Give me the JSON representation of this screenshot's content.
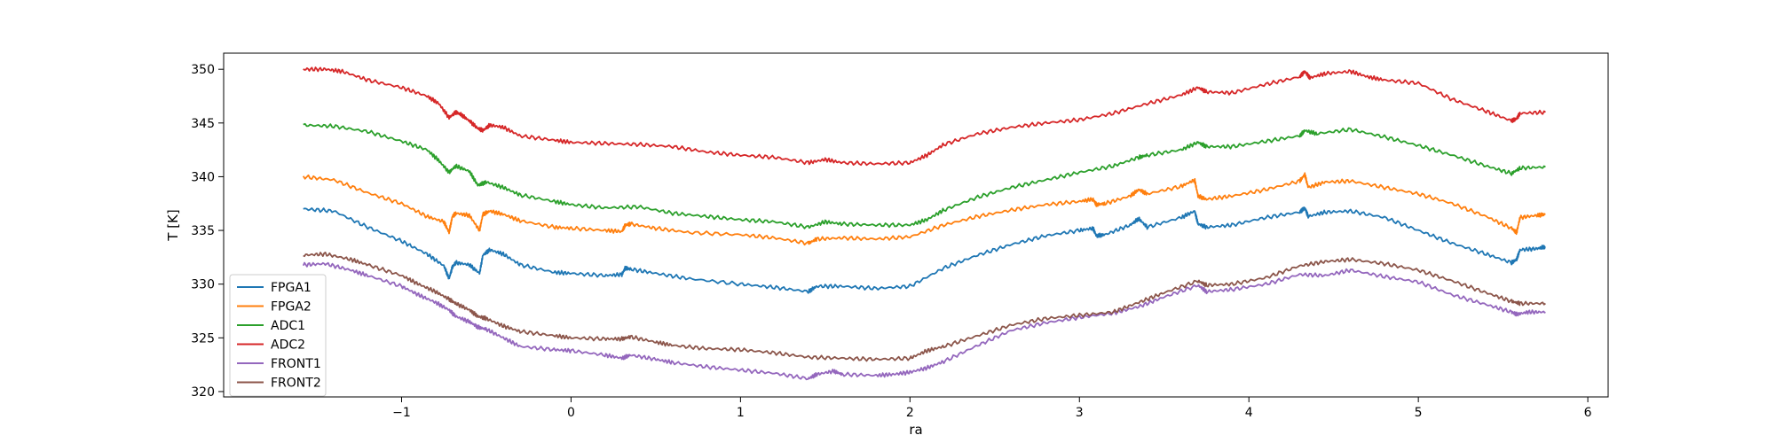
{
  "chart_data": {
    "type": "line",
    "title": "",
    "xlabel": "ra",
    "ylabel": "T [K]",
    "xlim": [
      -2.05,
      6.12
    ],
    "ylim": [
      319.5,
      351.5
    ],
    "xticks": [
      -1,
      0,
      1,
      2,
      3,
      4,
      5,
      6
    ],
    "xtick_labels": [
      "−1",
      "0",
      "1",
      "2",
      "3",
      "4",
      "5",
      "6"
    ],
    "yticks": [
      320,
      325,
      330,
      335,
      340,
      345,
      350
    ],
    "ytick_labels": [
      "320",
      "325",
      "330",
      "335",
      "340",
      "345",
      "350"
    ],
    "grid": false,
    "legend_position": "lower-left",
    "series": [
      {
        "name": "FPGA1",
        "color": "#1f77b4",
        "x": [
          -1.58,
          -1.4,
          -1.2,
          -1.0,
          -0.85,
          -0.75,
          -0.72,
          -0.7,
          -0.68,
          -0.6,
          -0.54,
          -0.52,
          -0.48,
          -0.4,
          -0.3,
          -0.1,
          0.0,
          0.2,
          0.3,
          0.32,
          0.35,
          0.5,
          0.7,
          1.0,
          1.2,
          1.4,
          1.45,
          1.6,
          1.8,
          2.0,
          2.2,
          2.4,
          2.6,
          2.8,
          3.0,
          3.08,
          3.1,
          3.15,
          3.3,
          3.35,
          3.4,
          3.6,
          3.68,
          3.7,
          3.75,
          3.9,
          4.1,
          4.3,
          4.33,
          4.35,
          4.45,
          4.6,
          4.8,
          5.0,
          5.2,
          5.4,
          5.55,
          5.58,
          5.6,
          5.7,
          5.75
        ],
        "y": [
          337.0,
          336.8,
          335.3,
          334.0,
          332.8,
          331.7,
          330.5,
          331.6,
          332.0,
          331.8,
          331.0,
          332.7,
          333.2,
          332.8,
          331.8,
          331.1,
          331.0,
          330.8,
          330.9,
          331.5,
          331.4,
          331.0,
          330.5,
          330.0,
          329.7,
          329.3,
          329.8,
          329.8,
          329.6,
          329.8,
          331.5,
          332.7,
          333.7,
          334.5,
          335.0,
          335.2,
          334.5,
          334.6,
          335.5,
          336.1,
          335.3,
          336.2,
          336.8,
          335.6,
          335.3,
          335.5,
          336.2,
          336.7,
          337.1,
          336.3,
          336.7,
          336.8,
          336.2,
          335.0,
          333.8,
          332.8,
          332.0,
          332.3,
          333.2,
          333.3,
          333.5
        ]
      },
      {
        "name": "FPGA2",
        "color": "#ff7f0e",
        "x": [
          -1.58,
          -1.4,
          -1.2,
          -1.0,
          -0.85,
          -0.75,
          -0.72,
          -0.7,
          -0.68,
          -0.6,
          -0.54,
          -0.52,
          -0.48,
          -0.4,
          -0.3,
          -0.1,
          0.0,
          0.2,
          0.3,
          0.32,
          0.35,
          0.5,
          0.7,
          1.0,
          1.2,
          1.4,
          1.45,
          1.6,
          1.8,
          2.0,
          2.2,
          2.4,
          2.6,
          2.8,
          3.0,
          3.08,
          3.1,
          3.15,
          3.3,
          3.35,
          3.4,
          3.6,
          3.68,
          3.7,
          3.75,
          3.9,
          4.1,
          4.3,
          4.33,
          4.35,
          4.45,
          4.6,
          4.8,
          5.0,
          5.2,
          5.4,
          5.55,
          5.58,
          5.6,
          5.7,
          5.75
        ],
        "y": [
          340.0,
          339.7,
          338.5,
          337.5,
          336.3,
          335.8,
          334.8,
          336.3,
          336.6,
          336.4,
          335.0,
          336.5,
          336.8,
          336.5,
          335.9,
          335.3,
          335.2,
          335.0,
          334.9,
          335.5,
          335.6,
          335.2,
          334.8,
          334.6,
          334.3,
          333.8,
          334.2,
          334.3,
          334.2,
          334.4,
          335.5,
          336.3,
          336.9,
          337.4,
          337.7,
          337.9,
          337.4,
          337.5,
          338.2,
          338.8,
          338.4,
          339.1,
          339.7,
          338.2,
          337.9,
          338.2,
          338.8,
          339.6,
          340.2,
          339.0,
          339.5,
          339.6,
          339.0,
          338.4,
          337.5,
          336.3,
          335.2,
          334.8,
          336.2,
          336.4,
          336.5
        ]
      },
      {
        "name": "ADC1",
        "color": "#2ca02c",
        "x": [
          -1.58,
          -1.4,
          -1.2,
          -1.0,
          -0.85,
          -0.78,
          -0.72,
          -0.68,
          -0.6,
          -0.55,
          -0.5,
          -0.4,
          -0.3,
          -0.1,
          0.0,
          0.2,
          0.4,
          0.6,
          0.8,
          1.0,
          1.2,
          1.4,
          1.5,
          1.6,
          1.8,
          2.0,
          2.1,
          2.2,
          2.4,
          2.6,
          2.8,
          3.0,
          3.2,
          3.35,
          3.4,
          3.6,
          3.7,
          3.75,
          3.9,
          4.1,
          4.3,
          4.33,
          4.4,
          4.6,
          4.8,
          5.0,
          5.2,
          5.4,
          5.55,
          5.6,
          5.75
        ],
        "y": [
          344.8,
          344.7,
          344.2,
          343.3,
          342.5,
          341.5,
          340.4,
          341.0,
          340.5,
          339.2,
          339.5,
          339.0,
          338.3,
          337.7,
          337.4,
          337.1,
          337.2,
          336.6,
          336.3,
          336.0,
          335.8,
          335.3,
          335.8,
          335.6,
          335.5,
          335.5,
          336.0,
          336.9,
          338.1,
          339.0,
          339.7,
          340.4,
          341.0,
          341.8,
          342.0,
          342.5,
          343.2,
          342.8,
          342.8,
          343.3,
          343.8,
          344.3,
          344.0,
          344.4,
          343.7,
          342.9,
          342.0,
          341.0,
          340.3,
          340.8,
          340.9
        ]
      },
      {
        "name": "ADC2",
        "color": "#d62728",
        "x": [
          -1.58,
          -1.45,
          -1.35,
          -1.2,
          -1.0,
          -0.85,
          -0.78,
          -0.72,
          -0.68,
          -0.65,
          -0.6,
          -0.55,
          -0.52,
          -0.48,
          -0.4,
          -0.3,
          -0.1,
          0.0,
          0.2,
          0.4,
          0.6,
          0.8,
          1.0,
          1.2,
          1.4,
          1.5,
          1.6,
          1.8,
          2.0,
          2.1,
          2.2,
          2.4,
          2.6,
          2.8,
          3.0,
          3.2,
          3.4,
          3.6,
          3.7,
          3.75,
          3.9,
          4.1,
          4.3,
          4.33,
          4.36,
          4.45,
          4.6,
          4.7,
          4.8,
          5.0,
          5.2,
          5.4,
          5.55,
          5.58,
          5.6,
          5.75
        ],
        "y": [
          350.0,
          350.0,
          349.8,
          349.0,
          348.3,
          347.5,
          346.8,
          345.5,
          346.0,
          345.8,
          345.2,
          344.5,
          344.3,
          344.8,
          344.6,
          343.8,
          343.4,
          343.2,
          343.1,
          343.0,
          342.8,
          342.3,
          342.0,
          341.8,
          341.3,
          341.6,
          341.3,
          341.2,
          341.3,
          342.0,
          343.0,
          344.0,
          344.6,
          345.0,
          345.3,
          345.9,
          346.8,
          347.6,
          348.3,
          347.9,
          347.8,
          348.6,
          349.3,
          349.8,
          349.2,
          349.6,
          349.8,
          349.3,
          349.0,
          348.7,
          347.2,
          346.1,
          345.2,
          345.4,
          345.9,
          346.0
        ]
      },
      {
        "name": "FRONT1",
        "color": "#9467bd",
        "x": [
          -1.58,
          -1.45,
          -1.3,
          -1.2,
          -1.0,
          -0.9,
          -0.8,
          -0.72,
          -0.68,
          -0.6,
          -0.55,
          -0.5,
          -0.4,
          -0.3,
          -0.1,
          0.0,
          0.2,
          0.3,
          0.35,
          0.5,
          0.6,
          0.8,
          1.0,
          1.2,
          1.4,
          1.45,
          1.55,
          1.6,
          1.8,
          1.9,
          2.0,
          2.1,
          2.2,
          2.4,
          2.6,
          2.8,
          3.0,
          3.2,
          3.35,
          3.5,
          3.7,
          3.75,
          3.9,
          4.1,
          4.3,
          4.45,
          4.6,
          4.8,
          5.0,
          5.2,
          5.4,
          5.55,
          5.58,
          5.65,
          5.75
        ],
        "y": [
          331.8,
          331.9,
          331.3,
          330.8,
          329.8,
          329.0,
          328.3,
          327.6,
          327.0,
          326.5,
          326.0,
          325.8,
          325.0,
          324.2,
          323.9,
          323.8,
          323.4,
          323.1,
          323.4,
          323.0,
          322.7,
          322.3,
          322.0,
          321.7,
          321.2,
          321.6,
          321.9,
          321.6,
          321.5,
          321.6,
          321.8,
          322.2,
          322.8,
          324.3,
          325.7,
          326.4,
          326.9,
          327.3,
          327.9,
          328.8,
          329.9,
          329.3,
          329.5,
          330.0,
          330.9,
          330.8,
          331.3,
          330.7,
          330.2,
          329.0,
          328.1,
          327.4,
          327.2,
          327.4,
          327.4
        ]
      },
      {
        "name": "FRONT2",
        "color": "#8c564b",
        "x": [
          -1.58,
          -1.45,
          -1.3,
          -1.2,
          -1.0,
          -0.9,
          -0.8,
          -0.72,
          -0.68,
          -0.6,
          -0.55,
          -0.5,
          -0.4,
          -0.3,
          -0.1,
          0.0,
          0.2,
          0.3,
          0.35,
          0.5,
          0.6,
          0.8,
          1.0,
          1.2,
          1.4,
          1.6,
          1.8,
          2.0,
          2.1,
          2.2,
          2.4,
          2.6,
          2.8,
          3.0,
          3.2,
          3.35,
          3.5,
          3.7,
          3.75,
          3.9,
          4.1,
          4.3,
          4.45,
          4.6,
          4.8,
          5.0,
          5.2,
          5.4,
          5.55,
          5.6,
          5.75
        ],
        "y": [
          332.7,
          332.8,
          332.3,
          331.8,
          330.8,
          330.0,
          329.3,
          328.6,
          328.2,
          327.6,
          327.0,
          326.8,
          326.1,
          325.6,
          325.2,
          325.0,
          324.9,
          324.9,
          325.1,
          324.6,
          324.3,
          324.0,
          323.9,
          323.6,
          323.2,
          323.1,
          323.0,
          323.1,
          323.8,
          324.2,
          325.2,
          326.2,
          326.8,
          327.1,
          327.4,
          328.3,
          329.2,
          330.3,
          329.9,
          330.0,
          330.6,
          331.7,
          332.1,
          332.3,
          331.9,
          331.3,
          330.3,
          329.2,
          328.4,
          328.2,
          328.2
        ]
      }
    ]
  }
}
